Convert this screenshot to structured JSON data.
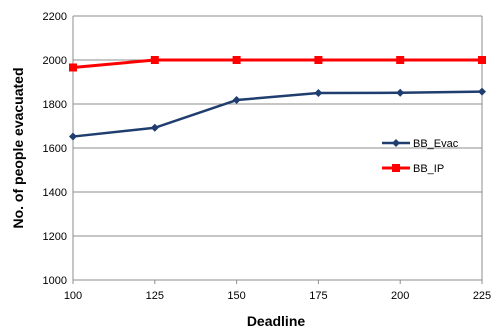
{
  "chart_data": {
    "type": "line",
    "title": "",
    "xlabel": "Deadline",
    "ylabel": "No. of people evacuated",
    "x": [
      100,
      125,
      150,
      175,
      200,
      225
    ],
    "xticks": [
      "100",
      "125",
      "150",
      "175",
      "200",
      "225"
    ],
    "yticks": [
      "1000",
      "1200",
      "1400",
      "1600",
      "1800",
      "2000",
      "2200"
    ],
    "ylim": [
      1000,
      2200
    ],
    "grid": "horizontal",
    "legend_position": "right",
    "series": [
      {
        "name": "BB_Evac",
        "values": [
          1652,
          1692,
          1818,
          1850,
          1851,
          1856
        ],
        "color": "#1F3D6E",
        "marker": "diamond"
      },
      {
        "name": "BB_IP",
        "values": [
          1966,
          2000,
          2000,
          2000,
          2000,
          2000
        ],
        "color": "#FF0000",
        "marker": "square"
      }
    ]
  }
}
